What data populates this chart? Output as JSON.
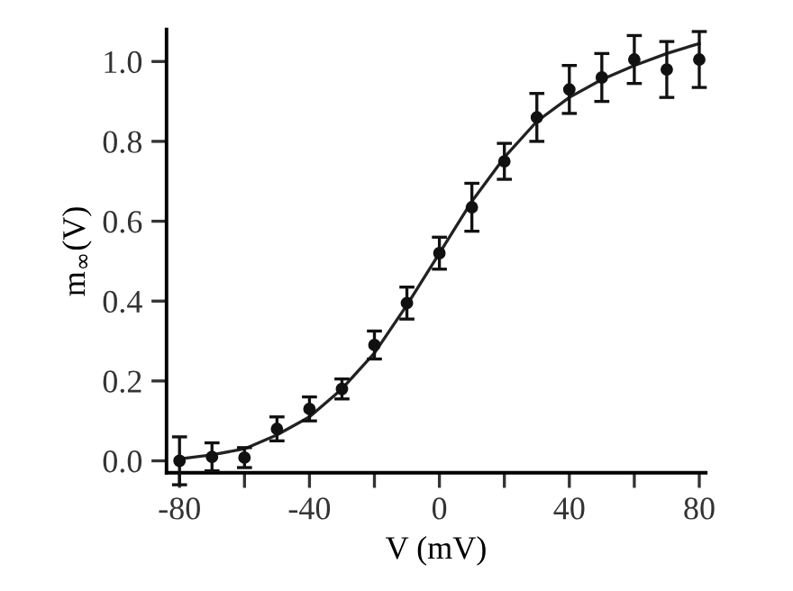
{
  "chart_data": {
    "type": "scatter",
    "xlabel": "V (mV)",
    "ylabel": "m$_{∞}$(V)",
    "xlim": [
      -84,
      82
    ],
    "ylim": [
      -0.03,
      1.08
    ],
    "xticks": [
      -80,
      {
        "value": -60,
        "label": null
      },
      -40,
      {
        "value": -20,
        "label": null
      },
      0,
      {
        "value": 20,
        "label": null
      },
      40,
      {
        "value": 60,
        "label": null
      },
      80
    ],
    "yticks": [
      {
        "value": 0,
        "label": "0.0"
      },
      0.2,
      0.4,
      0.6,
      0.8,
      {
        "value": 1,
        "label": "1.0"
      }
    ],
    "grid": false,
    "legend": false,
    "series": [
      {
        "color": "#111111",
        "marker": "circle",
        "x": [
          -80,
          -70,
          -60,
          -50,
          -40,
          -30,
          -20,
          -10,
          0,
          10,
          20,
          30,
          40,
          50,
          60,
          70,
          80
        ],
        "values": [
          0.0,
          0.01,
          0.008,
          0.08,
          0.13,
          0.18,
          0.29,
          0.395,
          0.52,
          0.635,
          0.75,
          0.86,
          0.93,
          0.96,
          1.005,
          0.98,
          1.005
        ],
        "errors": [
          0.06,
          0.035,
          0.025,
          0.03,
          0.03,
          0.025,
          0.035,
          0.04,
          0.04,
          0.06,
          0.045,
          0.06,
          0.06,
          0.06,
          0.06,
          0.07,
          0.07
        ]
      },
      {
        "type": "line",
        "color": "#222222",
        "marker": "none",
        "line_style": "solid",
        "x": [
          -80,
          -70,
          -60,
          -50,
          -40,
          -30,
          -20,
          -10,
          0,
          10,
          20,
          30,
          40,
          50,
          60,
          70,
          80
        ],
        "values": [
          0.005,
          0.015,
          0.03,
          0.065,
          0.11,
          0.18,
          0.27,
          0.39,
          0.52,
          0.65,
          0.76,
          0.85,
          0.91,
          0.955,
          0.99,
          1.02,
          1.045
        ]
      }
    ]
  }
}
